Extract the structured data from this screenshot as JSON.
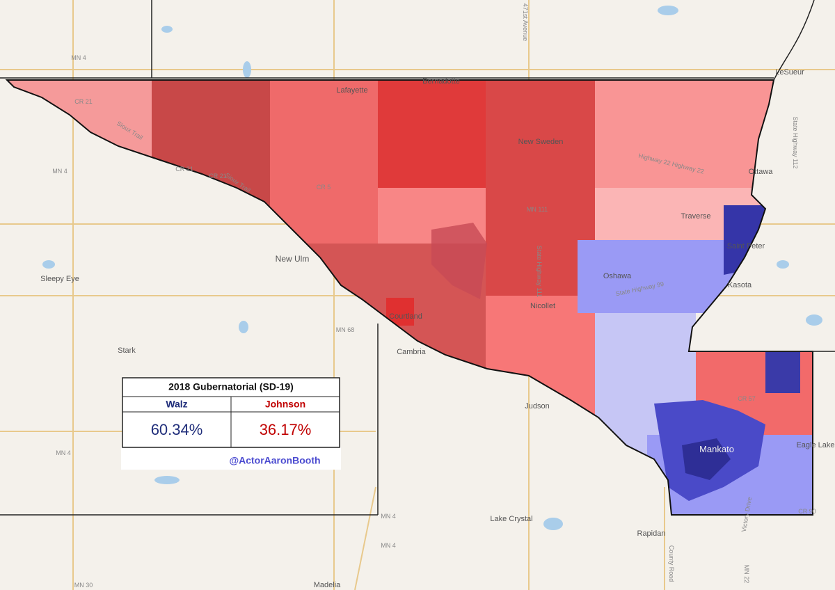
{
  "legend": {
    "title": "2018 Gubernatorial (SD-19)",
    "candidates": [
      {
        "name": "Walz",
        "share": "60.34%"
      },
      {
        "name": "Johnson",
        "share": "36.17%"
      }
    ],
    "credit": "@ActorAaronBooth"
  },
  "map_labels": {
    "places": [
      "Lafayette",
      "Bernadotte",
      "New Sweden",
      "Ottawa",
      "LeSueur",
      "Traverse",
      "Saint Peter",
      "Kasota",
      "Oshawa",
      "Nicollet",
      "Courtland",
      "New Ulm",
      "Sleepy Eye",
      "Stark",
      "Cambria",
      "Judson",
      "Mankato",
      "Eagle Lake",
      "Lake Crystal",
      "Rapidan",
      "Madelia"
    ],
    "roads": [
      "MN 4",
      "MN 4",
      "MN 4",
      "MN 4",
      "MN 4",
      "MN 30",
      "MN 68",
      "MN 111",
      "CR 21",
      "CR 21",
      "CR 21",
      "CR 5",
      "CR 57",
      "CR 90",
      "Sioux Trail",
      "Sioux Trail",
      "Highway 22 Highway 22",
      "State Highway 99",
      "State Highway 111",
      "471st Avenue",
      "State Highway 112",
      "County Road",
      "Victory Drive",
      "MN 22"
    ]
  }
}
